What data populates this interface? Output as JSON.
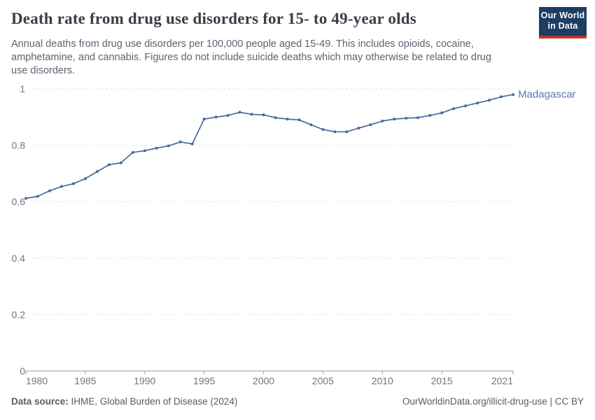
{
  "header": {
    "title": "Death rate from drug use disorders for 15- to 49-year olds",
    "subtitle_lines": [
      "Annual deaths from drug use disorders per 100,000 people aged 15-49. This includes opioids, cocaine,",
      "amphetamine, and cannabis. Figures do not include suicide deaths which may otherwise be related to drug",
      "use disorders."
    ],
    "logo": {
      "line1": "Our World",
      "line2": "in Data",
      "bg_color": "#1d3d63",
      "accent_color": "#c4342e"
    }
  },
  "chart_data": {
    "type": "line",
    "title": "Death rate from drug use disorders for 15- to 49-year olds",
    "xlabel": "",
    "ylabel": "",
    "xlim": [
      1980,
      2021
    ],
    "ylim": [
      0,
      1
    ],
    "x_ticks": [
      1980,
      1985,
      1990,
      1995,
      2000,
      2005,
      2010,
      2015,
      2021
    ],
    "y_ticks": [
      0,
      0.2,
      0.4,
      0.6,
      0.8,
      1
    ],
    "y_tick_labels": [
      "0",
      "0.2",
      "0.4",
      "0.6",
      "0.8",
      "1"
    ],
    "grid": "horizontal-dashed",
    "legend_position": "end-of-line-label",
    "x": [
      1980,
      1981,
      1982,
      1983,
      1984,
      1985,
      1986,
      1987,
      1988,
      1989,
      1990,
      1991,
      1992,
      1993,
      1994,
      1995,
      1996,
      1997,
      1998,
      1999,
      2000,
      2001,
      2002,
      2003,
      2004,
      2005,
      2006,
      2007,
      2008,
      2009,
      2010,
      2011,
      2012,
      2013,
      2014,
      2015,
      2016,
      2017,
      2018,
      2019,
      2020,
      2021
    ],
    "series": [
      {
        "name": "Madagascar",
        "color": "#4b69a0",
        "label_color": "#5b77ad",
        "values": [
          0.612,
          0.619,
          0.639,
          0.654,
          0.664,
          0.682,
          0.707,
          0.731,
          0.738,
          0.775,
          0.781,
          0.79,
          0.798,
          0.812,
          0.805,
          0.893,
          0.9,
          0.906,
          0.917,
          0.91,
          0.908,
          0.898,
          0.893,
          0.89,
          0.873,
          0.856,
          0.848,
          0.848,
          0.861,
          0.873,
          0.886,
          0.893,
          0.896,
          0.898,
          0.906,
          0.915,
          0.93,
          0.94,
          0.95,
          0.96,
          0.972,
          0.98
        ]
      }
    ],
    "colors": {
      "gridline": "#e2e2e2",
      "axis": "#999999",
      "tick_text": "#757575"
    }
  },
  "footer": {
    "datasource_label": "Data source:",
    "datasource_value": " IHME, Global Burden of Disease (2024)",
    "credit": "OurWorldinData.org/illicit-drug-use | CC BY"
  }
}
